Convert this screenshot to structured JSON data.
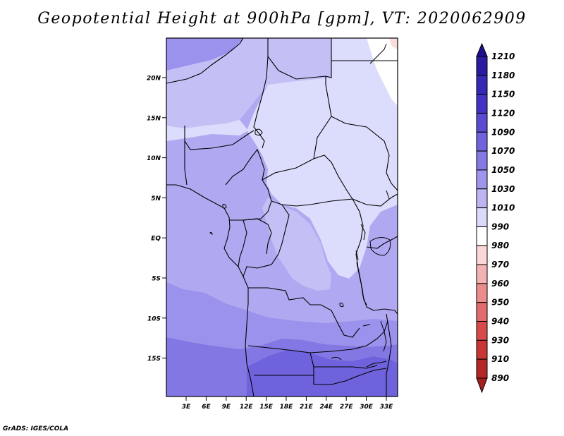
{
  "title": "Geopotential Height at 900hPa [gpm], VT: 2020062909",
  "credit": "GrADS: IGES/COLA",
  "map": {
    "lat_labels": [
      "20N",
      "15N",
      "10N",
      "5N",
      "EQ",
      "5S",
      "10S",
      "15S"
    ],
    "lon_labels": [
      "3E",
      "6E",
      "9E",
      "12E",
      "15E",
      "18E",
      "21E",
      "24E",
      "27E",
      "30E",
      "33E"
    ]
  },
  "colorbar": {
    "labels": [
      "1210",
      "1180",
      "1150",
      "1120",
      "1090",
      "1070",
      "1050",
      "1030",
      "1010",
      "990",
      "980",
      "970",
      "960",
      "950",
      "940",
      "930",
      "910",
      "890"
    ],
    "colors": [
      "#1e0f8c",
      "#2a1ca0",
      "#3528b4",
      "#4333c4",
      "#5a4cd2",
      "#6f62dc",
      "#8579e4",
      "#9f95ec",
      "#bcb5f2",
      "#dcdaf9",
      "#ffffff",
      "#fbd7d7",
      "#f4b3b3",
      "#ec8d8d",
      "#e26b6b",
      "#d74a4a",
      "#c83535",
      "#b52727",
      "#a31f1f"
    ]
  },
  "fields": {
    "colors": {
      "c1010": "#dcdcfc",
      "c1030": "#c4c0f6",
      "c1050": "#b0a9f1",
      "c1070": "#9a92ec",
      "c1090": "#8277e3",
      "c1120": "#6e63dd",
      "c990": "#ffffff",
      "c980": "#fbdcdc",
      "coast": "#000000"
    }
  }
}
